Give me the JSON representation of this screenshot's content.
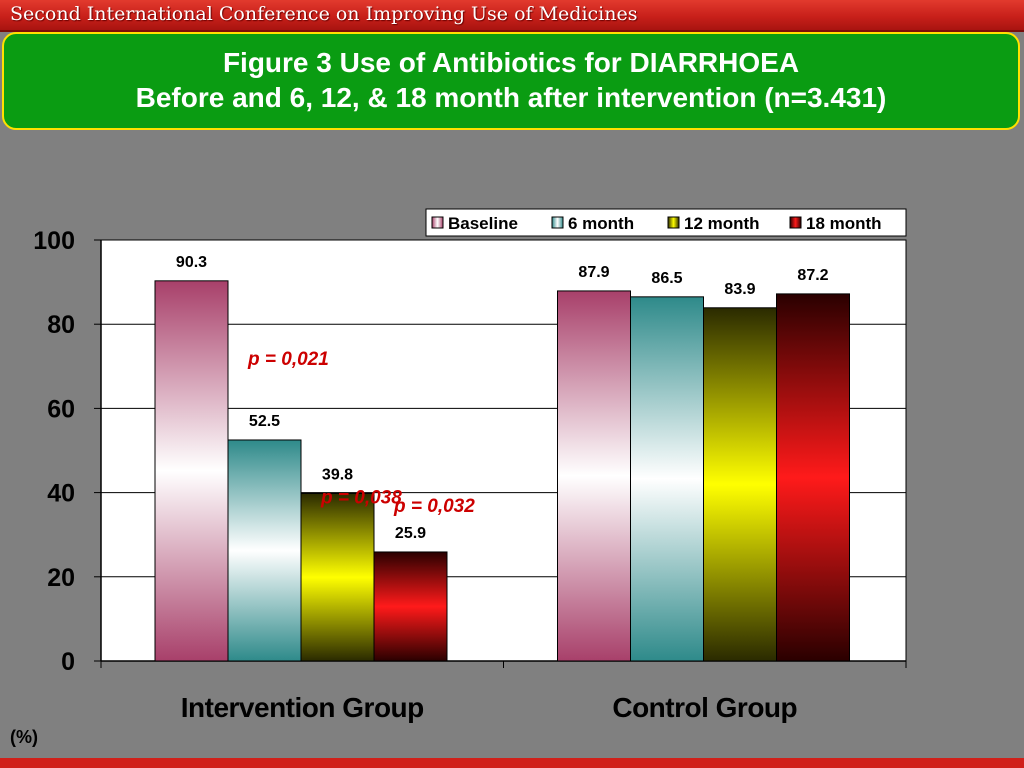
{
  "banner": {
    "text": "Second International Conference on Improving Use of Medicines"
  },
  "title": {
    "line1": "Figure 3  Use of Antibiotics for DIARRHOEA",
    "line2": "Before and 6, 12, & 18 month after intervention (n=3.431)"
  },
  "chart_data": {
    "type": "bar",
    "title": "Figure 3  Use of Antibiotics for DIARRHOEA",
    "subtitle": "Before and 6, 12, & 18 month after intervention (n=3.431)",
    "categories": [
      "Intervention Group",
      "Control Group"
    ],
    "series": [
      {
        "name": "Baseline",
        "values": [
          90.3,
          87.9
        ],
        "color": "#a8406a"
      },
      {
        "name": "6 month",
        "values": [
          52.5,
          86.5
        ],
        "color": "#2e8a8a"
      },
      {
        "name": "12 month",
        "values": [
          39.8,
          83.9
        ],
        "color": "#8a8a00"
      },
      {
        "name": "18 month",
        "values": [
          25.9,
          87.2
        ],
        "color": "#b00000"
      }
    ],
    "ylim": [
      0,
      100
    ],
    "yticks": [
      0,
      20,
      40,
      60,
      80,
      100
    ],
    "ylabel": "(%)",
    "xlabel": "",
    "grid": true,
    "legend_position": "top-right",
    "annotations": [
      {
        "text": "p = 0,021",
        "category": 0,
        "series": 1
      },
      {
        "text": "p = 0,038",
        "category": 0,
        "series": 2
      },
      {
        "text": "p = 0,032",
        "category": 0,
        "series": 3
      }
    ]
  },
  "colors": {
    "annotation": "#cc0000",
    "plot_background": "#ffffff",
    "page_background": "#808080"
  }
}
